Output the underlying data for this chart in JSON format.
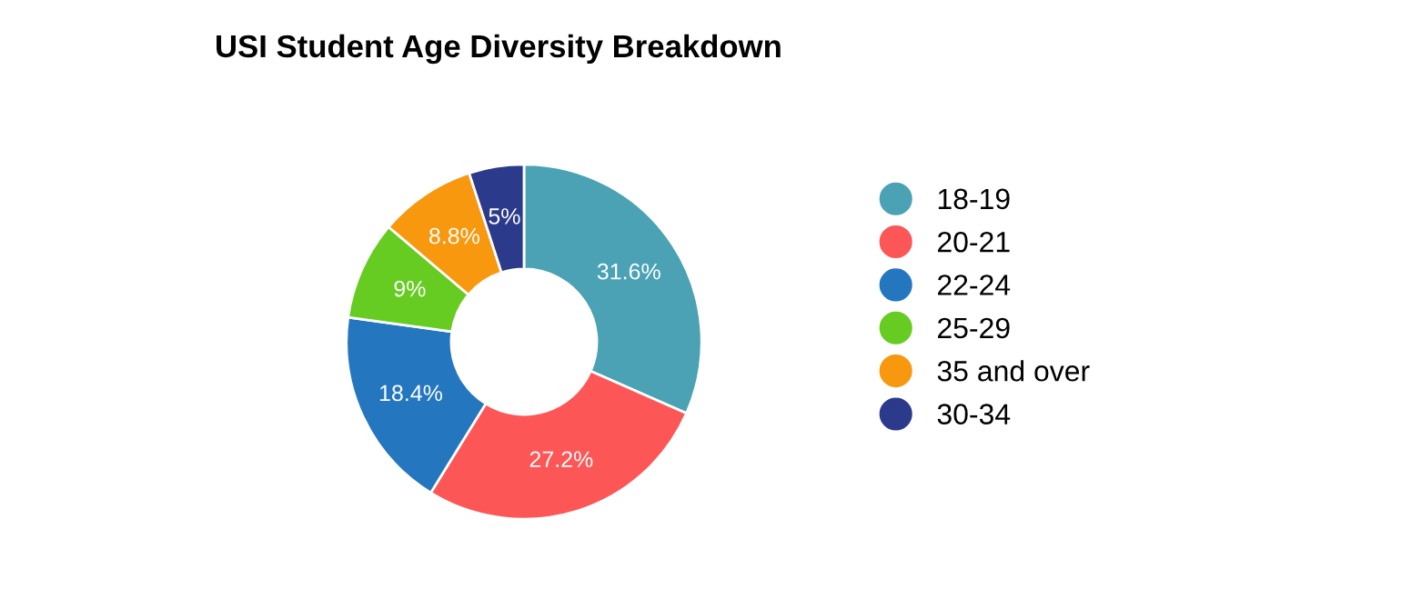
{
  "chart_data": {
    "type": "donut",
    "title": "USI Student Age Diversity Breakdown",
    "categories": [
      "18-19",
      "20-21",
      "22-24",
      "25-29",
      "35 and over",
      "30-34"
    ],
    "values": [
      31.6,
      27.2,
      18.4,
      9,
      8.8,
      5
    ],
    "colors": [
      "#4aa2b4",
      "#fd5656",
      "#2477bf",
      "#66cc22",
      "#f7980f",
      "#2c3a8c"
    ],
    "value_labels": [
      "31.6%",
      "27.2%",
      "18.4%",
      "9%",
      "8.8%",
      "5%"
    ],
    "legend": "right"
  }
}
